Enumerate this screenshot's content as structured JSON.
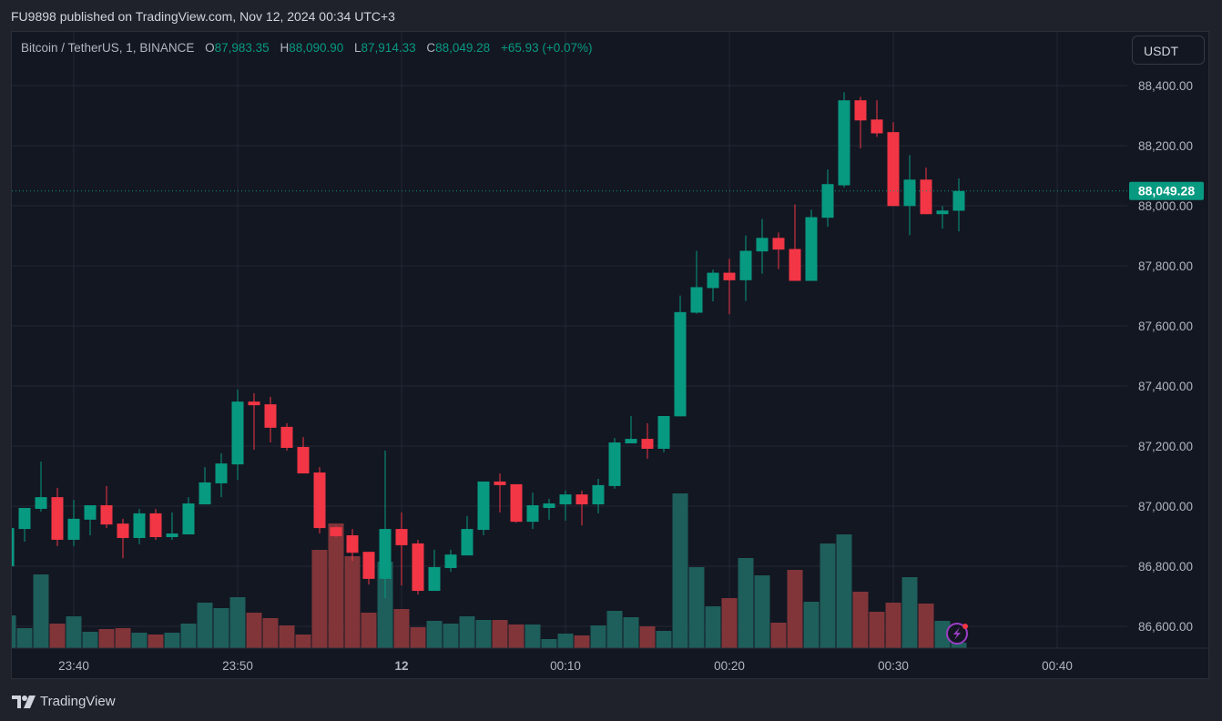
{
  "header": {
    "published": "FU9898 published on TradingView.com, Nov 12, 2024 00:34 UTC+3"
  },
  "legend": {
    "symbol": "Bitcoin / TetherUS, 1, BINANCE",
    "o_label": "O",
    "o": "87,983.35",
    "h_label": "H",
    "h": "88,090.90",
    "l_label": "L",
    "l": "87,914.33",
    "c_label": "C",
    "c": "88,049.28",
    "change": "+65.93 (+0.07%)"
  },
  "currency_button": "USDT",
  "footer": {
    "logo_text": "TradingView"
  },
  "colors": {
    "up": "#089981",
    "down": "#f23645",
    "vol_up": "#1e5e5b",
    "vol_down": "#813539",
    "grid": "#232734",
    "background": "#131722"
  },
  "chart_data": {
    "type": "candlestick",
    "symbol": "BTCUSDT",
    "interval_minutes": 1,
    "ylim": [
      86520,
      88470
    ],
    "price_ticks": [
      "86,600.00",
      "86,800.00",
      "87,000.00",
      "87,200.00",
      "87,400.00",
      "87,600.00",
      "87,800.00",
      "88,000.00",
      "88,200.00",
      "88,400.00"
    ],
    "price_tick_values": [
      86600,
      86800,
      87000,
      87200,
      87400,
      87600,
      87800,
      88000,
      88200,
      88400
    ],
    "time_ticks": [
      {
        "label": "23:40",
        "minute": -20,
        "bold": false
      },
      {
        "label": "23:50",
        "minute": -10,
        "bold": false
      },
      {
        "label": "12",
        "minute": 0,
        "bold": true
      },
      {
        "label": "00:10",
        "minute": 10,
        "bold": false
      },
      {
        "label": "00:20",
        "minute": 20,
        "bold": false
      },
      {
        "label": "00:30",
        "minute": 30,
        "bold": false
      },
      {
        "label": "00:40",
        "minute": 40,
        "bold": false
      }
    ],
    "last_price": 88049.28,
    "last_price_label": "88,049.28",
    "grid": true,
    "first_minute": -24,
    "ohlc": [
      [
        86800,
        86927,
        86800,
        86927
      ],
      [
        86924,
        86994,
        86882,
        86994
      ],
      [
        86991,
        87148,
        86982,
        87030
      ],
      [
        87030,
        87061,
        86867,
        86888
      ],
      [
        86888,
        87021,
        86867,
        86958
      ],
      [
        86955,
        87003,
        86903,
        87003
      ],
      [
        87003,
        87067,
        86927,
        86939
      ],
      [
        86942,
        86958,
        86827,
        86894
      ],
      [
        86894,
        86991,
        86873,
        86976
      ],
      [
        86976,
        86991,
        86888,
        86897
      ],
      [
        86897,
        86979,
        86888,
        86909
      ],
      [
        86906,
        87030,
        86906,
        87009
      ],
      [
        87006,
        87130,
        87006,
        87079
      ],
      [
        87076,
        87176,
        87030,
        87142
      ],
      [
        87139,
        87388,
        87088,
        87348
      ],
      [
        87348,
        87376,
        87188,
        87336
      ],
      [
        87339,
        87364,
        87212,
        87261
      ],
      [
        87264,
        87276,
        87185,
        87194
      ],
      [
        87197,
        87230,
        87109,
        87109
      ],
      [
        87112,
        87130,
        86909,
        86927
      ],
      [
        86930,
        86933,
        86897,
        86900
      ],
      [
        86903,
        86924,
        86818,
        86845
      ],
      [
        86848,
        86848,
        86739,
        86758
      ],
      [
        86758,
        87185,
        86694,
        86924
      ],
      [
        86924,
        86979,
        86736,
        86870
      ],
      [
        86876,
        86888,
        86706,
        86718
      ],
      [
        86718,
        86855,
        86718,
        86797
      ],
      [
        86794,
        86855,
        86782,
        86839
      ],
      [
        86836,
        86967,
        86836,
        86924
      ],
      [
        86921,
        87082,
        86903,
        87082
      ],
      [
        87082,
        87109,
        86979,
        87070
      ],
      [
        87073,
        87073,
        86945,
        86948
      ],
      [
        86948,
        87045,
        86924,
        87003
      ],
      [
        86994,
        87024,
        86955,
        87009
      ],
      [
        87006,
        87052,
        86952,
        87039
      ],
      [
        87039,
        87052,
        86936,
        87006
      ],
      [
        87006,
        87091,
        86976,
        87070
      ],
      [
        87067,
        87227,
        87058,
        87212
      ],
      [
        87209,
        87300,
        87209,
        87224
      ],
      [
        87224,
        87276,
        87158,
        87191
      ],
      [
        87191,
        87300,
        87179,
        87300
      ],
      [
        87299,
        87701,
        87299,
        87646
      ],
      [
        87644,
        87850,
        87641,
        87729
      ],
      [
        87726,
        87787,
        87682,
        87777
      ],
      [
        87777,
        87823,
        87639,
        87752
      ],
      [
        87752,
        87901,
        87683,
        87850
      ],
      [
        87848,
        87956,
        87774,
        87893
      ],
      [
        87893,
        87911,
        87789,
        87854
      ],
      [
        87856,
        88004,
        87750,
        87750
      ],
      [
        87750,
        87987,
        87750,
        87962
      ],
      [
        87960,
        88121,
        87930,
        88072
      ],
      [
        88068,
        88378,
        88061,
        88351
      ],
      [
        88351,
        88363,
        88191,
        88284
      ],
      [
        88287,
        88351,
        88229,
        88241
      ],
      [
        88245,
        88278,
        87999,
        87999
      ],
      [
        87999,
        88168,
        87902,
        88087
      ],
      [
        88087,
        88127,
        87972,
        87972
      ],
      [
        87972,
        87999,
        87924,
        87984
      ],
      [
        87983.35,
        88090.9,
        87914.33,
        88049.28
      ]
    ],
    "volume_relative": [
      36,
      22,
      81,
      27,
      35,
      18,
      21,
      22,
      17,
      15,
      17,
      27,
      50,
      44,
      56,
      39,
      33,
      25,
      15,
      108,
      137,
      101,
      39,
      95,
      43,
      23,
      30,
      27,
      35,
      31,
      31,
      26,
      26,
      10,
      16,
      14,
      25,
      41,
      34,
      24,
      19,
      170,
      89,
      46,
      55,
      99,
      80,
      28,
      86,
      51,
      115,
      125,
      62,
      40,
      50,
      78,
      49,
      30,
      6
    ]
  }
}
